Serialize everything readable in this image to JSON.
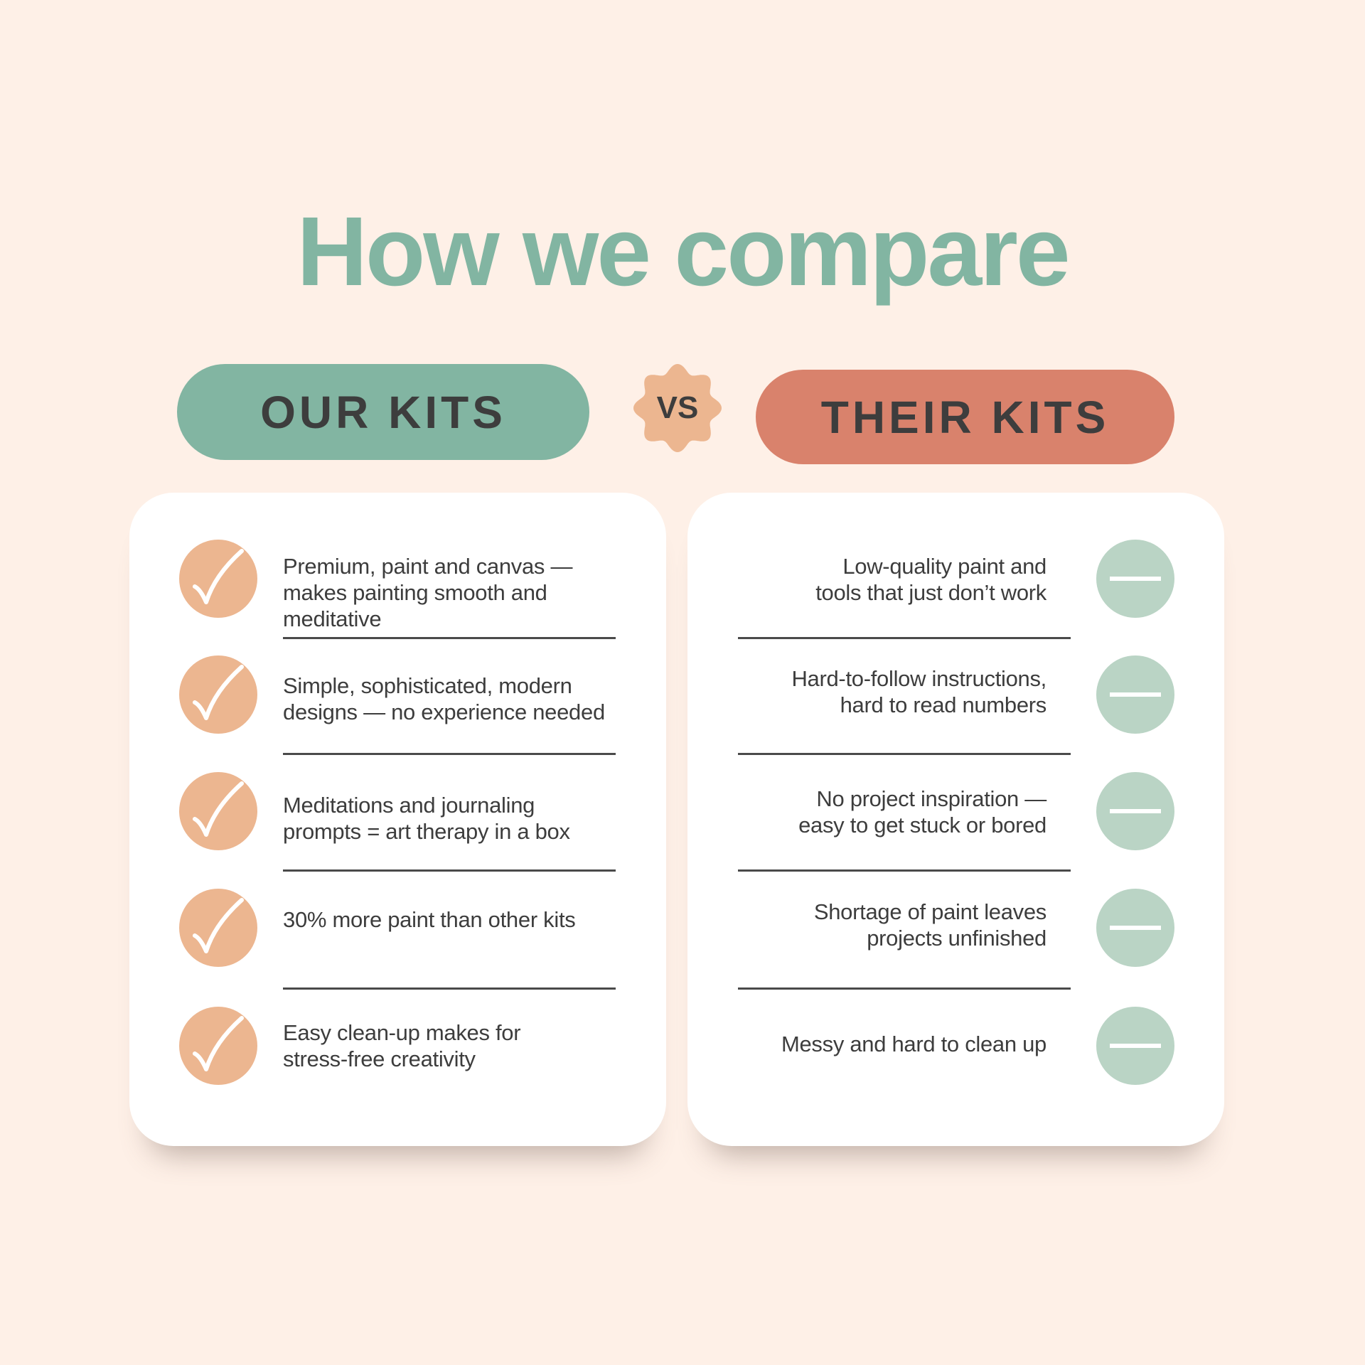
{
  "title": "How we compare",
  "ours": {
    "label": "OUR KITS",
    "color": "#82b5a2",
    "items": [
      "Premium, paint and canvas —\nmakes painting smooth and\nmeditative",
      "Simple, sophisticated, modern\ndesigns — no experience needed",
      "Meditations and journaling\nprompts =  art therapy in a box",
      "30% more paint than other kits",
      "Easy clean-up makes for\nstress-free creativity"
    ],
    "icon": "checkmark-icon"
  },
  "vs_label": "VS",
  "theirs": {
    "label": "THEIR KITS",
    "color": "#d9826c",
    "items": [
      "Low-quality paint and\ntools that just don’t work",
      "Hard-to-follow instructions,\nhard to read numbers",
      "No project inspiration —\neasy to get stuck or bored",
      "Shortage of paint leaves\nprojects unfinished",
      "Messy and hard to clean up"
    ],
    "icon": "minus-icon"
  }
}
